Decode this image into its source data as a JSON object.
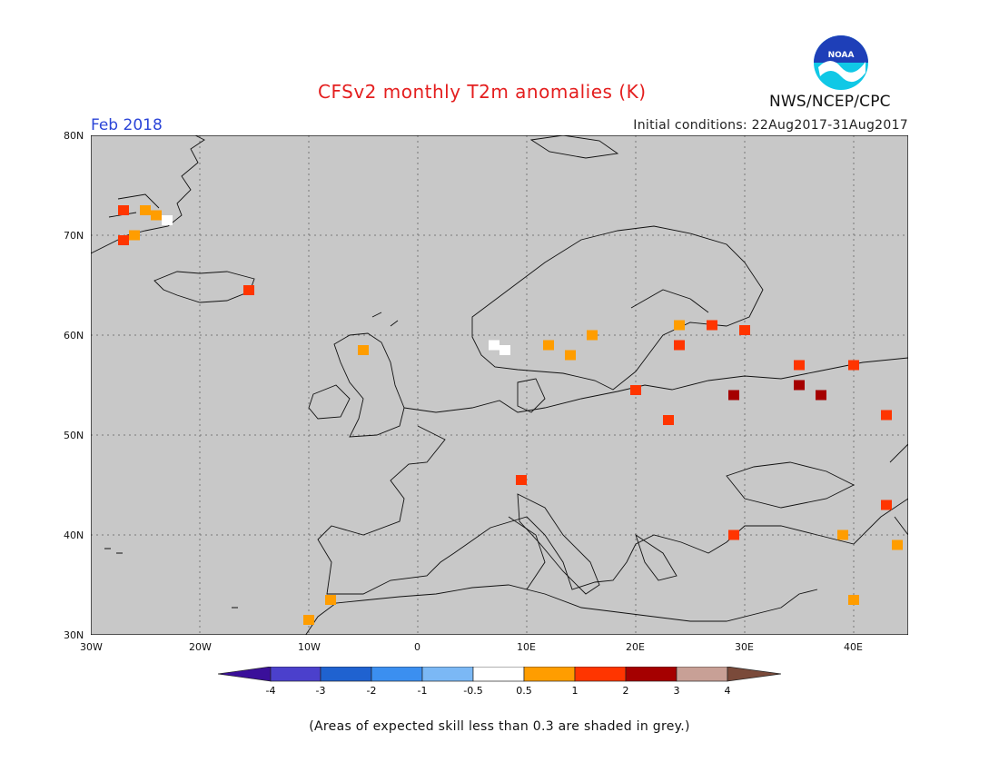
{
  "header": {
    "title": "CFSv2 monthly T2m anomalies (K)",
    "month": "Feb 2018",
    "initial_conditions": "Initial conditions: 22Aug2017-31Aug2017",
    "agency": "NWS/NCEP/CPC",
    "logo_text": "NOAA"
  },
  "map": {
    "background_color": "#c8c8c8",
    "lat_labels": [
      "80N",
      "70N",
      "60N",
      "50N",
      "40N",
      "30N"
    ],
    "lon_labels": [
      "30W",
      "20W",
      "10W",
      "0",
      "10E",
      "20E",
      "30E",
      "40E"
    ],
    "extent": {
      "lon": [
        -30,
        45
      ],
      "lat": [
        30,
        80
      ]
    },
    "anomaly_cells": [
      {
        "lon": -27,
        "lat": 72.5,
        "level": "1-2"
      },
      {
        "lon": -25,
        "lat": 72.5,
        "level": "0.5-1"
      },
      {
        "lon": -24,
        "lat": 72,
        "level": "0.5-1"
      },
      {
        "lon": -23,
        "lat": 71.5,
        "level": "-0.5-0.5"
      },
      {
        "lon": -26,
        "lat": 70,
        "level": "0.5-1"
      },
      {
        "lon": -27,
        "lat": 69.5,
        "level": "1-2"
      },
      {
        "lon": -15.5,
        "lat": 64.5,
        "level": "1-2"
      },
      {
        "lon": -5,
        "lat": 58.5,
        "level": "0.5-1"
      },
      {
        "lon": 7,
        "lat": 59,
        "level": "-0.5-0.5"
      },
      {
        "lon": 8,
        "lat": 58.5,
        "level": "-0.5-0.5"
      },
      {
        "lon": 12,
        "lat": 59,
        "level": "0.5-1"
      },
      {
        "lon": 14,
        "lat": 58,
        "level": "0.5-1"
      },
      {
        "lon": 16,
        "lat": 60,
        "level": "0.5-1"
      },
      {
        "lon": 24,
        "lat": 61,
        "level": "0.5-1"
      },
      {
        "lon": 27,
        "lat": 61,
        "level": "1-2"
      },
      {
        "lon": 30,
        "lat": 60.5,
        "level": "1-2"
      },
      {
        "lon": 24,
        "lat": 59,
        "level": "1-2"
      },
      {
        "lon": 35,
        "lat": 57,
        "level": "1-2"
      },
      {
        "lon": 40,
        "lat": 57,
        "level": "1-2"
      },
      {
        "lon": 35,
        "lat": 55,
        "level": "2-3"
      },
      {
        "lon": 37,
        "lat": 54,
        "level": "2-3"
      },
      {
        "lon": 43,
        "lat": 52,
        "level": "1-2"
      },
      {
        "lon": 29,
        "lat": 54,
        "level": "2-3"
      },
      {
        "lon": 20,
        "lat": 54.5,
        "level": "1-2"
      },
      {
        "lon": 23,
        "lat": 51.5,
        "level": "1-2"
      },
      {
        "lon": 9.5,
        "lat": 45.5,
        "level": "1-2"
      },
      {
        "lon": 43,
        "lat": 43,
        "level": "1-2"
      },
      {
        "lon": 29,
        "lat": 40,
        "level": "1-2"
      },
      {
        "lon": 39,
        "lat": 40,
        "level": "0.5-1"
      },
      {
        "lon": 44,
        "lat": 39,
        "level": "0.5-1"
      },
      {
        "lon": 40,
        "lat": 33.5,
        "level": "0.5-1"
      },
      {
        "lon": -8,
        "lat": 33.5,
        "level": "0.5-1"
      },
      {
        "lon": -10,
        "lat": 31.5,
        "level": "0.5-1"
      }
    ]
  },
  "colorbar": {
    "ticks": [
      "-4",
      "-3",
      "-2",
      "-1",
      "-0.5",
      "0.5",
      "1",
      "2",
      "3",
      "4"
    ],
    "colors": {
      "below_-4": "#3a0f9a",
      "-4--3": "#4b40cc",
      "-3--2": "#1f62d0",
      "-2--1": "#3b8ff0",
      "-1--0.5": "#7bb8f5",
      "-0.5-0.5": "#ffffff",
      "0.5-1": "#ff9d00",
      "1-2": "#ff3500",
      "2-3": "#a50000",
      "3-4": "#c8a096",
      "above_4": "#7a4a3a"
    }
  },
  "footer": {
    "note": "(Areas of expected skill less than 0.3 are shaded in grey.)"
  }
}
